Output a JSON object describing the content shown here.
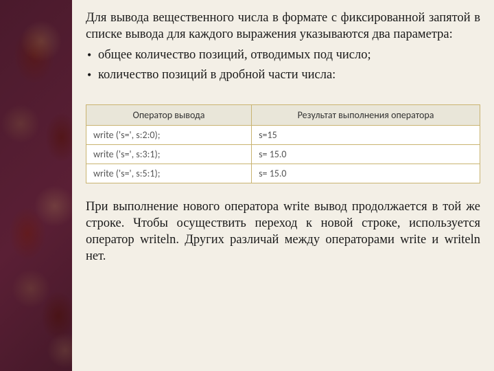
{
  "intro": "Для вывода вещественного числа в формате с фиксированной запятой в списке вывода для каждого выражения указываются два параметра:",
  "bullets": [
    "общее количество позиций, отводимых под число;",
    "количество позиций в дробной части числа:"
  ],
  "table": {
    "headers": [
      "Оператор вывода",
      "Результат выполнения оператора"
    ],
    "rows": [
      [
        "write ('s=', s:2:0);",
        "s=15"
      ],
      [
        "write ('s=', s:3:1);",
        "s=  15.0"
      ],
      [
        "write ('s=', s:5:1);",
        "s=   15.0"
      ]
    ],
    "header_bg": "#e9e6d9",
    "border_color": "#c9b370",
    "cell_bg": "#ffffff"
  },
  "outro": "При выполнение нового оператора write вывод продолжается в той же строке. Чтобы осуществить переход к новой строке, используется оператор writeln. Других различай между операторами write и writeln нет.",
  "colors": {
    "panel_bg": "#f3efe6",
    "text": "#1a1a1a",
    "sidebar_base": "#5a1f35"
  },
  "fontsize_body_pt": 14,
  "fontsize_table_pt": 10.5
}
